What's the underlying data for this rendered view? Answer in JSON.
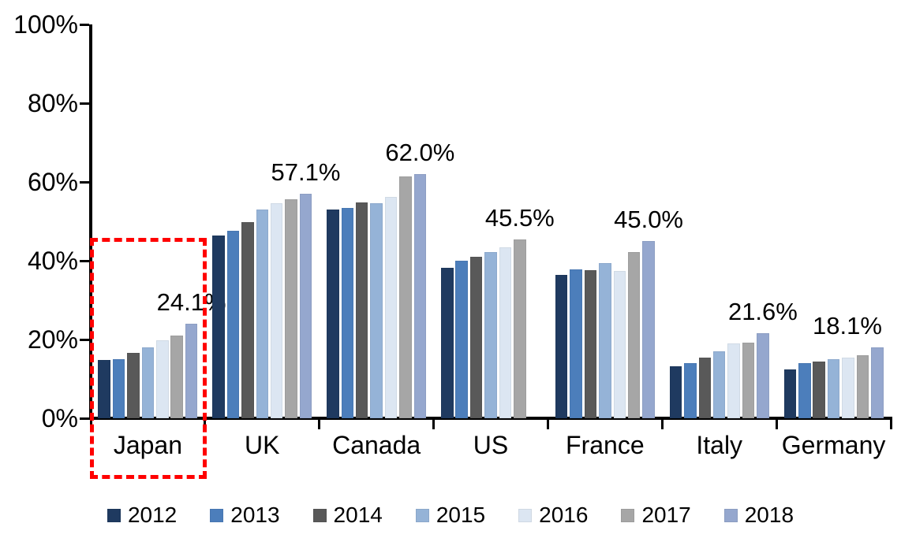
{
  "chart_data": {
    "type": "bar",
    "title": "",
    "categories": [
      "Japan",
      "UK",
      "Canada",
      "US",
      "France",
      "Italy",
      "Germany"
    ],
    "series": [
      {
        "name": "2012",
        "color": "#1F3A60",
        "values": [
          14.8,
          46.4,
          53.1,
          38.2,
          36.5,
          13.3,
          12.5
        ]
      },
      {
        "name": "2013",
        "color": "#4C7EBB",
        "values": [
          15.0,
          47.7,
          53.5,
          40.0,
          37.8,
          14.1,
          14.0
        ]
      },
      {
        "name": "2014",
        "color": "#595959",
        "values": [
          16.6,
          49.9,
          54.9,
          41.0,
          37.7,
          15.4,
          14.5
        ]
      },
      {
        "name": "2015",
        "color": "#95B3D7",
        "values": [
          18.0,
          53.1,
          54.6,
          42.2,
          39.4,
          17.1,
          15.0
        ]
      },
      {
        "name": "2016",
        "color": "#DCE6F2",
        "values": [
          19.9,
          54.7,
          56.2,
          43.4,
          37.4,
          19.1,
          15.5
        ]
      },
      {
        "name": "2017",
        "color": "#A6A6A6",
        "values": [
          21.1,
          55.7,
          61.4,
          45.5,
          42.3,
          19.2,
          16.1
        ]
      },
      {
        "name": "2018",
        "color": "#95A7CE",
        "values": [
          24.1,
          57.1,
          62.0,
          null,
          45.0,
          21.6,
          18.1
        ]
      }
    ],
    "data_labels": [
      "24.1%",
      "57.1%",
      "62.0%",
      "45.5%",
      "45.0%",
      "21.6%",
      "18.1%"
    ],
    "y_ticks": [
      {
        "value": 100,
        "label": "100%"
      },
      {
        "value": 80,
        "label": "80%"
      },
      {
        "value": 60,
        "label": "60%"
      },
      {
        "value": 40,
        "label": "40%"
      },
      {
        "value": 20,
        "label": "20%"
      },
      {
        "value": 0,
        "label": "0%"
      }
    ],
    "ylim": [
      0,
      100
    ],
    "grid": false,
    "legend_position": "bottom",
    "highlight_box": {
      "category": "Japan",
      "color": "#FF0000",
      "style": "dashed"
    },
    "axis_color": "#000000"
  }
}
